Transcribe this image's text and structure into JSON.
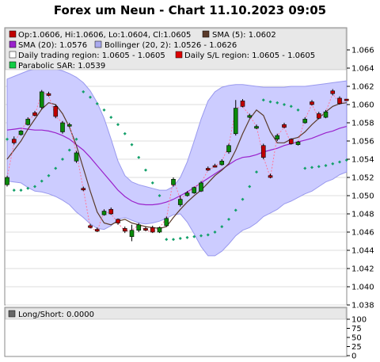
{
  "title": "Forex um Neun - Chart 11.10.2023 09:05",
  "legend": {
    "ohlc": "Op:1.0606, Hi:1.0606, Lo:1.0604, Cl:1.0605",
    "sma5": "SMA (5): 1.0602",
    "sma20": "SMA (20): 1.0576",
    "bollinger": "Bollinger (20, 2): 1.0526 - 1.0626",
    "daily_region": "Daily trading region: 1.0605 - 1.0605",
    "sl_region": "Daily S/L region: 1.0605 - 1.0605",
    "sar": "Parabolic SAR: 1.0539",
    "long_short": "Long/Short: 0.0000"
  },
  "colors": {
    "up": "#0a8a0a",
    "down": "#c00000",
    "sma5": "#5a3a2a",
    "sma20": "#9a22cc",
    "band": "#ccccff",
    "band_edge": "#9999ee",
    "sar": "#13a06a",
    "grid": "#dddddd",
    "panel_bg": "#ffffff"
  },
  "chart_data": [
    {
      "type": "candlestick",
      "ylim": [
        1.038,
        1.066
      ],
      "yticks": [
        "1.038",
        "1.040",
        "1.042",
        "1.044",
        "1.046",
        "1.048",
        "1.050",
        "1.052",
        "1.054",
        "1.056",
        "1.058",
        "1.060",
        "1.062",
        "1.064",
        "1.066"
      ],
      "candles": [
        {
          "o": 1.0512,
          "c": 1.052,
          "h": 1.0522,
          "l": 1.051
        },
        {
          "o": 1.0562,
          "c": 1.0558,
          "h": 1.0565,
          "l": 1.0556
        },
        {
          "o": 1.0567,
          "c": 1.0571,
          "h": 1.0572,
          "l": 1.0566
        },
        {
          "o": 1.0578,
          "c": 1.0584,
          "h": 1.0586,
          "l": 1.0577
        },
        {
          "o": 1.0591,
          "c": 1.0588,
          "h": 1.0593,
          "l": 1.0587
        },
        {
          "o": 1.0597,
          "c": 1.0614,
          "h": 1.0616,
          "l": 1.0595
        },
        {
          "o": 1.0612,
          "c": 1.061,
          "h": 1.0614,
          "l": 1.0609
        },
        {
          "o": 1.0598,
          "c": 1.0587,
          "h": 1.06,
          "l": 1.0585
        },
        {
          "o": 1.057,
          "c": 1.058,
          "h": 1.0582,
          "l": 1.0568
        },
        {
          "o": 1.0577,
          "c": 1.0578,
          "h": 1.058,
          "l": 1.0576
        },
        {
          "o": 1.0538,
          "c": 1.0547,
          "h": 1.0549,
          "l": 1.0536
        },
        {
          "o": 1.0508,
          "c": 1.0507,
          "h": 1.051,
          "l": 1.0505
        },
        {
          "o": 1.0467,
          "c": 1.0465,
          "h": 1.0469,
          "l": 1.0464
        },
        {
          "o": 1.0463,
          "c": 1.0461,
          "h": 1.0465,
          "l": 1.046
        },
        {
          "o": 1.0479,
          "c": 1.0483,
          "h": 1.0485,
          "l": 1.0478
        },
        {
          "o": 1.0485,
          "c": 1.048,
          "h": 1.0487,
          "l": 1.0479
        },
        {
          "o": 1.0474,
          "c": 1.047,
          "h": 1.0475,
          "l": 1.0468
        },
        {
          "o": 1.0464,
          "c": 1.0461,
          "h": 1.0466,
          "l": 1.0459
        },
        {
          "o": 1.0455,
          "c": 1.0462,
          "h": 1.0468,
          "l": 1.045
        },
        {
          "o": 1.0462,
          "c": 1.0468,
          "h": 1.047,
          "l": 1.046
        },
        {
          "o": 1.0464,
          "c": 1.0462,
          "h": 1.0466,
          "l": 1.0461
        },
        {
          "o": 1.0465,
          "c": 1.046,
          "h": 1.0467,
          "l": 1.0459
        },
        {
          "o": 1.046,
          "c": 1.0465,
          "h": 1.0466,
          "l": 1.0459
        },
        {
          "o": 1.0467,
          "c": 1.0475,
          "h": 1.0477,
          "l": 1.0466
        },
        {
          "o": 1.0512,
          "c": 1.0518,
          "h": 1.052,
          "l": 1.051
        },
        {
          "o": 1.049,
          "c": 1.0496,
          "h": 1.05,
          "l": 1.0488
        },
        {
          "o": 1.05,
          "c": 1.0503,
          "h": 1.0505,
          "l": 1.0499
        },
        {
          "o": 1.0503,
          "c": 1.0509,
          "h": 1.051,
          "l": 1.0502
        },
        {
          "o": 1.0505,
          "c": 1.0514,
          "h": 1.0516,
          "l": 1.0504
        },
        {
          "o": 1.053,
          "c": 1.0528,
          "h": 1.0532,
          "l": 1.0527
        },
        {
          "o": 1.0533,
          "c": 1.0532,
          "h": 1.0535,
          "l": 1.0531
        },
        {
          "o": 1.0534,
          "c": 1.0538,
          "h": 1.054,
          "l": 1.0533
        },
        {
          "o": 1.0548,
          "c": 1.0555,
          "h": 1.0557,
          "l": 1.0546
        },
        {
          "o": 1.0568,
          "c": 1.0596,
          "h": 1.0605,
          "l": 1.0566
        },
        {
          "o": 1.0604,
          "c": 1.0598,
          "h": 1.0606,
          "l": 1.0597
        },
        {
          "o": 1.0586,
          "c": 1.0588,
          "h": 1.059,
          "l": 1.0585
        },
        {
          "o": 1.0574,
          "c": 1.0576,
          "h": 1.0578,
          "l": 1.0573
        },
        {
          "o": 1.0555,
          "c": 1.0542,
          "h": 1.0557,
          "l": 1.054
        },
        {
          "o": 1.0522,
          "c": 1.052,
          "h": 1.0524,
          "l": 1.0519
        },
        {
          "o": 1.0562,
          "c": 1.0566,
          "h": 1.0568,
          "l": 1.056
        },
        {
          "o": 1.0578,
          "c": 1.0575,
          "h": 1.058,
          "l": 1.0574
        },
        {
          "o": 1.0562,
          "c": 1.0557,
          "h": 1.0563,
          "l": 1.0556
        },
        {
          "o": 1.0556,
          "c": 1.0559,
          "h": 1.056,
          "l": 1.0555
        },
        {
          "o": 1.058,
          "c": 1.0584,
          "h": 1.0586,
          "l": 1.0579
        },
        {
          "o": 1.0603,
          "c": 1.06,
          "h": 1.0605,
          "l": 1.0599
        },
        {
          "o": 1.059,
          "c": 1.0585,
          "h": 1.0592,
          "l": 1.0584
        },
        {
          "o": 1.0586,
          "c": 1.0592,
          "h": 1.0594,
          "l": 1.0585
        },
        {
          "o": 1.0615,
          "c": 1.0612,
          "h": 1.0617,
          "l": 1.061
        },
        {
          "o": 1.0607,
          "c": 1.0601,
          "h": 1.0609,
          "l": 1.06
        },
        {
          "o": 1.0606,
          "c": 1.0605,
          "h": 1.0606,
          "l": 1.0604
        }
      ],
      "sma5": [
        1.054,
        1.055,
        1.056,
        1.0573,
        1.0584,
        1.0595,
        1.0602,
        1.06,
        1.059,
        1.0575,
        1.0555,
        1.053,
        1.0505,
        1.0482,
        1.047,
        1.0468,
        1.0472,
        1.0474,
        1.047,
        1.0468,
        1.0466,
        1.0465,
        1.0464,
        1.0466,
        1.0476,
        1.0485,
        1.0493,
        1.05,
        1.0506,
        1.0514,
        1.0522,
        1.0528,
        1.0535,
        1.055,
        1.0568,
        1.0584,
        1.0594,
        1.0588,
        1.057,
        1.0558,
        1.0558,
        1.0562,
        1.0564,
        1.057,
        1.0578,
        1.0585,
        1.0592,
        1.0598,
        1.0601,
        1.0602
      ],
      "sma20": [
        1.0572,
        1.0573,
        1.0574,
        1.0573,
        1.0572,
        1.0572,
        1.0571,
        1.0569,
        1.0566,
        1.0562,
        1.0556,
        1.055,
        1.0542,
        1.0533,
        1.0524,
        1.0515,
        1.0506,
        1.0499,
        1.0494,
        1.0491,
        1.049,
        1.049,
        1.0491,
        1.0493,
        1.0496,
        1.05,
        1.0504,
        1.0509,
        1.0514,
        1.0519,
        1.0524,
        1.0529,
        1.0534,
        1.0539,
        1.0542,
        1.0543,
        1.0545,
        1.0548,
        1.055,
        1.0552,
        1.0555,
        1.0557,
        1.0559,
        1.0561,
        1.0563,
        1.0566,
        1.0569,
        1.0571,
        1.0574,
        1.0576
      ],
      "band_upper": [
        1.0628,
        1.0631,
        1.0634,
        1.0637,
        1.0639,
        1.064,
        1.064,
        1.0639,
        1.0637,
        1.0634,
        1.063,
        1.0624,
        1.0615,
        1.0602,
        1.0585,
        1.0562,
        1.0538,
        1.0522,
        1.0515,
        1.0512,
        1.051,
        1.0508,
        1.0506,
        1.0506,
        1.051,
        1.052,
        1.0537,
        1.056,
        1.0584,
        1.0604,
        1.0614,
        1.0619,
        1.0621,
        1.0622,
        1.0622,
        1.0621,
        1.062,
        1.0619,
        1.0619,
        1.0619,
        1.0619,
        1.062,
        1.062,
        1.062,
        1.0621,
        1.0622,
        1.0623,
        1.0624,
        1.0625,
        1.0626
      ],
      "band_lower": [
        1.0516,
        1.0515,
        1.0514,
        1.0509,
        1.0505,
        1.0504,
        1.0502,
        1.0499,
        1.0495,
        1.049,
        1.0482,
        1.0476,
        1.0469,
        1.0464,
        1.0463,
        1.0467,
        1.0474,
        1.0476,
        1.0473,
        1.047,
        1.0469,
        1.047,
        1.0472,
        1.0475,
        1.0479,
        1.048,
        1.0471,
        1.0458,
        1.0444,
        1.0434,
        1.0434,
        1.0439,
        1.0447,
        1.0456,
        1.0462,
        1.0465,
        1.047,
        1.0477,
        1.0481,
        1.0485,
        1.0491,
        1.0494,
        1.0498,
        1.0502,
        1.0505,
        1.051,
        1.0515,
        1.0518,
        1.0523,
        1.0526
      ],
      "sar": [
        {
          "i": 0,
          "v": 1.0562
        },
        {
          "i": 1,
          "v": 1.0506
        },
        {
          "i": 2,
          "v": 1.0506
        },
        {
          "i": 3,
          "v": 1.0508
        },
        {
          "i": 4,
          "v": 1.051
        },
        {
          "i": 5,
          "v": 1.0516
        },
        {
          "i": 6,
          "v": 1.0522
        },
        {
          "i": 7,
          "v": 1.053
        },
        {
          "i": 8,
          "v": 1.054
        },
        {
          "i": 9,
          "v": 1.055
        },
        {
          "i": 10,
          "v": 1.0562
        },
        {
          "i": 11,
          "v": 1.0614
        },
        {
          "i": 12,
          "v": 1.0608
        },
        {
          "i": 13,
          "v": 1.0601
        },
        {
          "i": 14,
          "v": 1.0594
        },
        {
          "i": 15,
          "v": 1.0586
        },
        {
          "i": 16,
          "v": 1.0578
        },
        {
          "i": 17,
          "v": 1.0568
        },
        {
          "i": 18,
          "v": 1.0556
        },
        {
          "i": 19,
          "v": 1.0542
        },
        {
          "i": 20,
          "v": 1.0528
        },
        {
          "i": 21,
          "v": 1.0514
        },
        {
          "i": 22,
          "v": 1.05
        },
        {
          "i": 23,
          "v": 1.0452
        },
        {
          "i": 24,
          "v": 1.0452
        },
        {
          "i": 25,
          "v": 1.0453
        },
        {
          "i": 26,
          "v": 1.0454
        },
        {
          "i": 27,
          "v": 1.0455
        },
        {
          "i": 28,
          "v": 1.0456
        },
        {
          "i": 29,
          "v": 1.0457
        },
        {
          "i": 30,
          "v": 1.046
        },
        {
          "i": 31,
          "v": 1.0466
        },
        {
          "i": 32,
          "v": 1.0474
        },
        {
          "i": 33,
          "v": 1.0484
        },
        {
          "i": 34,
          "v": 1.0496
        },
        {
          "i": 35,
          "v": 1.051
        },
        {
          "i": 36,
          "v": 1.0526
        },
        {
          "i": 37,
          "v": 1.0605
        },
        {
          "i": 38,
          "v": 1.0603
        },
        {
          "i": 39,
          "v": 1.0602
        },
        {
          "i": 40,
          "v": 1.06
        },
        {
          "i": 41,
          "v": 1.0598
        },
        {
          "i": 42,
          "v": 1.0594
        },
        {
          "i": 43,
          "v": 1.053
        },
        {
          "i": 44,
          "v": 1.0531
        },
        {
          "i": 45,
          "v": 1.0532
        },
        {
          "i": 46,
          "v": 1.0533
        },
        {
          "i": 47,
          "v": 1.0535
        },
        {
          "i": 48,
          "v": 1.0537
        },
        {
          "i": 49,
          "v": 1.0539
        }
      ]
    },
    {
      "type": "line",
      "title": "Long/Short: 0.0000",
      "ylim": [
        0,
        100
      ],
      "yticks": [
        "0",
        "25",
        "50",
        "75",
        "100"
      ],
      "values": []
    }
  ]
}
